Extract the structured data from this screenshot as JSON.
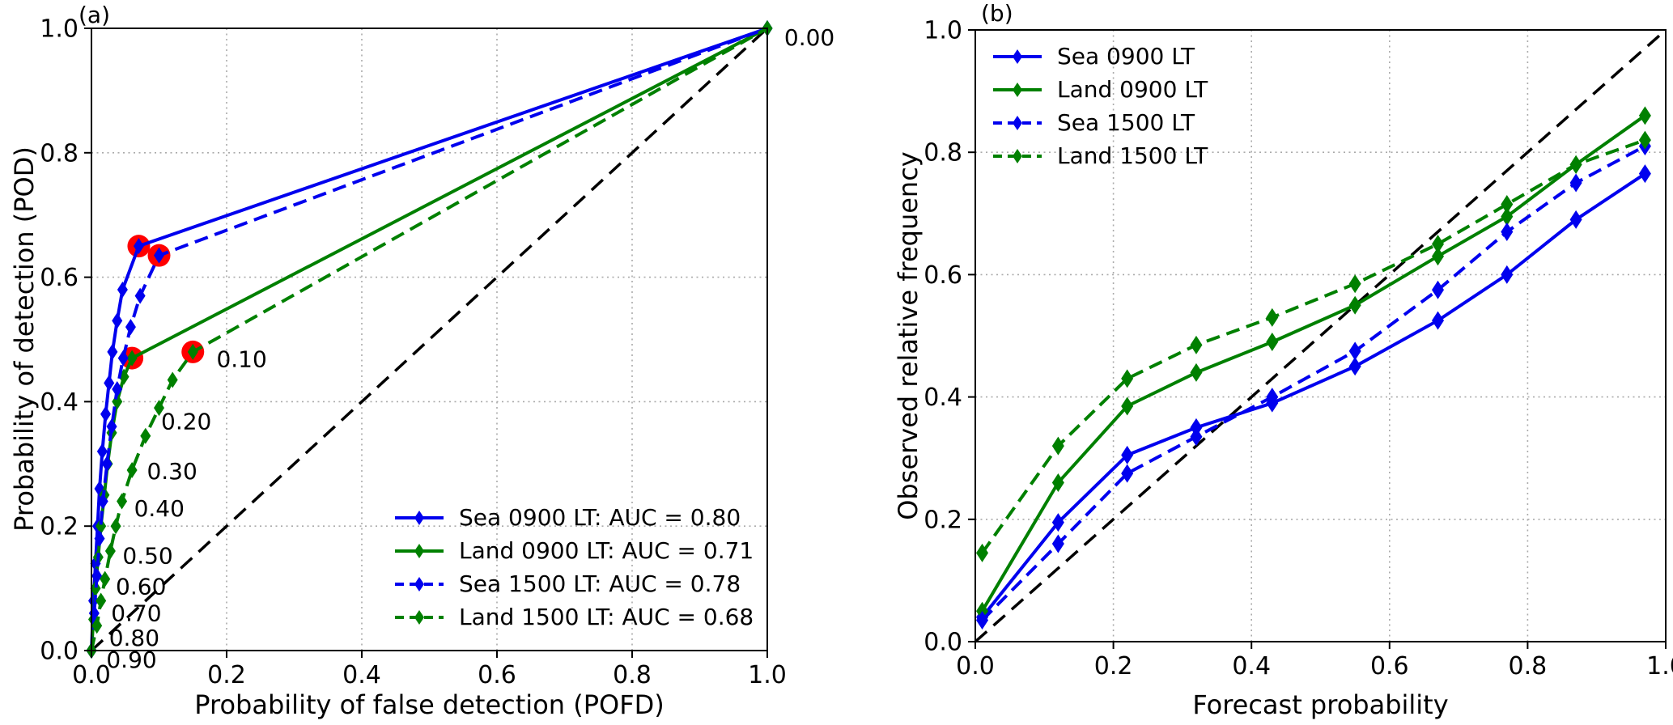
{
  "figure": {
    "background": "#ffffff",
    "panel_a_label": "(a)",
    "panel_b_label": "(b)"
  },
  "colors": {
    "sea": "#0000ee",
    "land": "#008000",
    "highlight": "#ff0000",
    "diagonal": "#000000",
    "grid": "#aaaaaa"
  },
  "chart_data": [
    {
      "type": "line",
      "panel_label": "(a)",
      "xlabel": "Probability of false detection (POFD)",
      "ylabel": "Probability of detection (POD)",
      "xlim": [
        0.0,
        1.0
      ],
      "ylim": [
        0.0,
        1.0
      ],
      "xticks": [
        0.0,
        0.2,
        0.4,
        0.6,
        0.8,
        1.0
      ],
      "yticks": [
        0.0,
        0.2,
        0.4,
        0.6,
        0.8,
        1.0
      ],
      "grid": true,
      "diagonal": true,
      "legend_position": "lower right",
      "series": [
        {
          "name": "Sea 0900 LT: AUC = 0.80",
          "color": "#0000ee",
          "style": "solid",
          "marker": "diamond",
          "points": [
            [
              0,
              0
            ],
            [
              0.003,
              0.08
            ],
            [
              0.006,
              0.14
            ],
            [
              0.009,
              0.2
            ],
            [
              0.012,
              0.26
            ],
            [
              0.016,
              0.32
            ],
            [
              0.021,
              0.38
            ],
            [
              0.026,
              0.43
            ],
            [
              0.031,
              0.48
            ],
            [
              0.038,
              0.53
            ],
            [
              0.046,
              0.58
            ],
            [
              0.07,
              0.65
            ],
            [
              1,
              1
            ]
          ]
        },
        {
          "name": "Land 0900 LT: AUC = 0.71",
          "color": "#008000",
          "style": "solid",
          "marker": "diamond",
          "points": [
            [
              0,
              0
            ],
            [
              0.003,
              0.05
            ],
            [
              0.006,
              0.1
            ],
            [
              0.01,
              0.15
            ],
            [
              0.014,
              0.2
            ],
            [
              0.019,
              0.25
            ],
            [
              0.024,
              0.3
            ],
            [
              0.03,
              0.35
            ],
            [
              0.038,
              0.4
            ],
            [
              0.048,
              0.44
            ],
            [
              0.06,
              0.47
            ],
            [
              1,
              1
            ]
          ]
        },
        {
          "name": "Sea 1500 LT: AUC = 0.78",
          "color": "#0000ee",
          "style": "dashed",
          "marker": "diamond",
          "points": [
            [
              0,
              0
            ],
            [
              0.004,
              0.06
            ],
            [
              0.008,
              0.12
            ],
            [
              0.012,
              0.18
            ],
            [
              0.017,
              0.24
            ],
            [
              0.023,
              0.3
            ],
            [
              0.03,
              0.36
            ],
            [
              0.038,
              0.42
            ],
            [
              0.047,
              0.47
            ],
            [
              0.058,
              0.52
            ],
            [
              0.072,
              0.57
            ],
            [
              0.1,
              0.635
            ],
            [
              1,
              1
            ]
          ]
        },
        {
          "name": "Land 1500 LT: AUC = 0.68",
          "color": "#008000",
          "style": "dashed",
          "marker": "diamond",
          "points": [
            [
              0,
              0
            ],
            [
              0.008,
              0.04
            ],
            [
              0.014,
              0.08
            ],
            [
              0.02,
              0.115
            ],
            [
              0.028,
              0.16
            ],
            [
              0.036,
              0.2
            ],
            [
              0.045,
              0.24
            ],
            [
              0.06,
              0.29
            ],
            [
              0.08,
              0.345
            ],
            [
              0.1,
              0.39
            ],
            [
              0.12,
              0.435
            ],
            [
              0.15,
              0.48
            ],
            [
              1,
              1
            ]
          ]
        }
      ],
      "highlight_points": {
        "color": "#ff0000",
        "radius": 14,
        "points": [
          [
            0.07,
            0.65
          ],
          [
            0.1,
            0.635
          ],
          [
            0.06,
            0.47
          ],
          [
            0.15,
            0.48
          ]
        ]
      },
      "threshold_labels": [
        {
          "text": "0.00",
          "x": 1.025,
          "y": 0.985
        },
        {
          "text": "0.10",
          "x": 0.185,
          "y": 0.468
        },
        {
          "text": "0.20",
          "x": 0.103,
          "y": 0.368
        },
        {
          "text": "0.30",
          "x": 0.082,
          "y": 0.288
        },
        {
          "text": "0.40",
          "x": 0.063,
          "y": 0.228
        },
        {
          "text": "0.50",
          "x": 0.046,
          "y": 0.152
        },
        {
          "text": "0.60",
          "x": 0.036,
          "y": 0.103
        },
        {
          "text": "0.70",
          "x": 0.029,
          "y": 0.06
        },
        {
          "text": "0.80",
          "x": 0.026,
          "y": 0.02
        },
        {
          "text": "0.90",
          "x": 0.022,
          "y": -0.015
        }
      ]
    },
    {
      "type": "line",
      "panel_label": "(b)",
      "xlabel": "Forecast probability",
      "ylabel": "Observed relative frequency",
      "xlim": [
        0.0,
        1.0
      ],
      "ylim": [
        0.0,
        1.0
      ],
      "xticks": [
        0.0,
        0.2,
        0.4,
        0.6,
        0.8,
        1.0
      ],
      "yticks": [
        0.0,
        0.2,
        0.4,
        0.6,
        0.8,
        1.0
      ],
      "grid": true,
      "diagonal": true,
      "legend_position": "upper left",
      "x": [
        0.01,
        0.12,
        0.22,
        0.32,
        0.43,
        0.55,
        0.67,
        0.77,
        0.87,
        0.97
      ],
      "series": [
        {
          "name": "Sea 0900 LT",
          "color": "#0000ee",
          "style": "solid",
          "marker": "diamond",
          "values": [
            0.04,
            0.195,
            0.305,
            0.35,
            0.39,
            0.45,
            0.525,
            0.6,
            0.69,
            0.765
          ]
        },
        {
          "name": "Land 0900 LT",
          "color": "#008000",
          "style": "solid",
          "marker": "diamond",
          "values": [
            0.05,
            0.26,
            0.385,
            0.44,
            0.49,
            0.55,
            0.63,
            0.695,
            0.78,
            0.86
          ]
        },
        {
          "name": "Sea 1500 LT",
          "color": "#0000ee",
          "style": "dashed",
          "marker": "diamond",
          "values": [
            0.035,
            0.16,
            0.275,
            0.335,
            0.4,
            0.475,
            0.575,
            0.67,
            0.75,
            0.81
          ]
        },
        {
          "name": "Land 1500 LT",
          "color": "#008000",
          "style": "dashed",
          "marker": "diamond",
          "values": [
            0.145,
            0.32,
            0.43,
            0.485,
            0.53,
            0.585,
            0.65,
            0.715,
            0.78,
            0.82
          ]
        }
      ]
    }
  ]
}
